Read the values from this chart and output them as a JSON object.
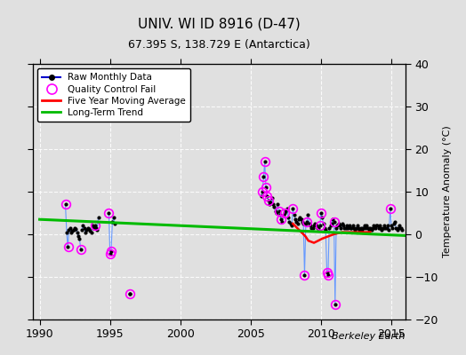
{
  "title": "UNIV. WI ID 8916 (D-47)",
  "subtitle": "67.395 S, 138.729 E (Antarctica)",
  "ylabel": "Temperature Anomaly (°C)",
  "credit": "Berkeley Earth",
  "xlim": [
    1989.5,
    2016.0
  ],
  "ylim": [
    -20,
    40
  ],
  "yticks": [
    -20,
    -10,
    0,
    10,
    20,
    30,
    40
  ],
  "xticks": [
    1990,
    1995,
    2000,
    2005,
    2010,
    2015
  ],
  "background_color": "#e0e0e0",
  "grid_color": "#ffffff",
  "segments": [
    {
      "x": [
        1991.83,
        1991.92,
        1992.0,
        1992.08,
        1992.17,
        1992.25,
        1992.33,
        1992.42,
        1992.5,
        1992.58,
        1992.67,
        1992.75,
        1992.83,
        1992.92
      ],
      "y": [
        7.0,
        0.5,
        -3.0,
        1.0,
        1.5,
        0.5,
        0.8,
        1.0,
        1.5,
        1.2,
        0.5,
        -0.5,
        -1.0,
        -3.5
      ]
    },
    {
      "x": [
        1993.0,
        1993.08,
        1993.17,
        1993.25,
        1993.33,
        1993.42,
        1993.5,
        1993.58,
        1993.67,
        1993.75,
        1993.83,
        1993.92
      ],
      "y": [
        1.0,
        2.0,
        1.5,
        0.5,
        1.0,
        1.5,
        1.2,
        0.8,
        0.5,
        2.0,
        1.5,
        2.0
      ]
    },
    {
      "x": [
        1994.0,
        1994.08,
        1994.17
      ],
      "y": [
        1.5,
        1.0,
        4.0
      ]
    },
    {
      "x": [
        1994.92,
        1995.0,
        1995.08,
        1995.17,
        1995.25,
        1995.33
      ],
      "y": [
        5.0,
        -4.5,
        -4.0,
        3.0,
        4.0,
        2.5
      ]
    },
    {
      "x": [
        1996.42
      ],
      "y": [
        -14.0
      ]
    },
    {
      "x": [
        2005.75,
        2005.83,
        2005.92,
        2006.0,
        2006.08,
        2006.17,
        2006.25,
        2006.33,
        2006.42,
        2006.5,
        2006.58,
        2006.67,
        2006.75,
        2006.83,
        2006.92,
        2007.0,
        2007.08,
        2007.17,
        2007.25,
        2007.33,
        2007.42,
        2007.5,
        2007.58,
        2007.67,
        2007.75,
        2007.83,
        2007.92,
        2008.0,
        2008.08,
        2008.17,
        2008.25,
        2008.33,
        2008.42,
        2008.5,
        2008.58,
        2008.67,
        2008.75,
        2008.83,
        2008.92,
        2009.0,
        2009.08,
        2009.17,
        2009.25,
        2009.33,
        2009.42,
        2009.5,
        2009.58,
        2009.67,
        2009.75,
        2009.83,
        2009.92,
        2010.0,
        2010.08,
        2010.17,
        2010.25,
        2010.33,
        2010.42,
        2010.5,
        2010.58,
        2010.67,
        2010.75,
        2010.83,
        2010.92,
        2011.0,
        2011.08,
        2011.17,
        2011.25,
        2011.33,
        2011.42,
        2011.5,
        2011.58,
        2011.67,
        2011.75,
        2011.83,
        2011.92,
        2012.0,
        2012.08,
        2012.17,
        2012.25,
        2012.33,
        2012.42,
        2012.5,
        2012.58,
        2012.67,
        2012.75,
        2012.83,
        2012.92,
        2013.0,
        2013.08,
        2013.17,
        2013.25,
        2013.33,
        2013.42,
        2013.5,
        2013.58,
        2013.67,
        2013.75,
        2013.83,
        2013.92,
        2014.0,
        2014.08,
        2014.17,
        2014.25,
        2014.33,
        2014.42,
        2014.5,
        2014.58,
        2014.67,
        2014.75,
        2014.83,
        2014.92,
        2015.0,
        2015.08,
        2015.17,
        2015.25,
        2015.33,
        2015.42,
        2015.5,
        2015.58,
        2015.67,
        2015.75
      ],
      "y": [
        9.0,
        10.0,
        13.5,
        17.0,
        11.0,
        9.0,
        8.0,
        7.0,
        7.5,
        8.5,
        7.0,
        6.5,
        5.5,
        5.0,
        7.0,
        5.5,
        4.5,
        3.5,
        3.0,
        4.5,
        5.0,
        5.5,
        6.0,
        4.0,
        3.0,
        2.5,
        2.0,
        6.0,
        4.5,
        3.5,
        3.0,
        2.5,
        3.5,
        4.0,
        3.5,
        3.0,
        2.5,
        -9.5,
        2.5,
        3.0,
        4.5,
        2.5,
        2.0,
        1.5,
        1.5,
        2.0,
        2.5,
        2.0,
        1.5,
        1.5,
        2.0,
        5.0,
        4.0,
        2.5,
        1.5,
        1.0,
        -9.0,
        -9.5,
        1.5,
        2.0,
        2.5,
        3.5,
        3.0,
        -16.5,
        1.5,
        2.0,
        2.5,
        2.0,
        1.5,
        2.5,
        2.0,
        1.5,
        1.5,
        2.0,
        1.5,
        2.0,
        1.5,
        1.5,
        2.0,
        1.5,
        1.0,
        1.5,
        2.0,
        1.5,
        1.0,
        1.5,
        1.0,
        1.5,
        2.0,
        1.5,
        2.0,
        1.5,
        1.0,
        1.5,
        1.0,
        1.5,
        2.0,
        1.5,
        2.0,
        2.0,
        1.5,
        2.0,
        1.5,
        1.0,
        1.5,
        2.0,
        1.5,
        1.5,
        2.0,
        1.0,
        6.0,
        2.0,
        1.5,
        2.5,
        3.0,
        1.5,
        1.0,
        1.5,
        2.0,
        1.5,
        1.0
      ]
    }
  ],
  "qc_fail": [
    [
      1991.83,
      7.0
    ],
    [
      1992.08,
      -3.0
    ],
    [
      1992.92,
      -3.5
    ],
    [
      1993.92,
      2.0
    ],
    [
      1994.92,
      5.0
    ],
    [
      1995.0,
      -4.5
    ],
    [
      1995.08,
      -4.0
    ],
    [
      1996.42,
      -14.0
    ],
    [
      2005.83,
      10.0
    ],
    [
      2005.92,
      13.5
    ],
    [
      2006.0,
      17.0
    ],
    [
      2006.08,
      11.0
    ],
    [
      2006.17,
      9.0
    ],
    [
      2006.25,
      8.0
    ],
    [
      2007.0,
      5.5
    ],
    [
      2007.17,
      3.5
    ],
    [
      2007.42,
      5.0
    ],
    [
      2008.0,
      6.0
    ],
    [
      2008.83,
      -9.5
    ],
    [
      2009.0,
      3.0
    ],
    [
      2009.92,
      2.0
    ],
    [
      2010.0,
      5.0
    ],
    [
      2010.42,
      -9.0
    ],
    [
      2010.5,
      -9.5
    ],
    [
      2010.92,
      3.0
    ],
    [
      2011.0,
      -16.5
    ],
    [
      2014.92,
      6.0
    ]
  ],
  "moving_avg": {
    "x": [
      2008.0,
      2008.3,
      2008.6,
      2008.9,
      2009.1,
      2009.5,
      2009.8,
      2010.1,
      2010.5,
      2010.9,
      2011.5,
      2012.5,
      2013.5
    ],
    "y": [
      2.5,
      1.5,
      0.5,
      -0.5,
      -1.5,
      -2.0,
      -1.5,
      -1.0,
      -0.5,
      0.0,
      0.5,
      0.5,
      0.5
    ]
  },
  "trend": {
    "x": [
      1990,
      2016
    ],
    "y": [
      3.5,
      -0.3
    ]
  },
  "colors": {
    "raw_line": "#6699ff",
    "raw_dot": "#000000",
    "qc_marker": "#ff00ff",
    "moving_avg": "#ff0000",
    "trend": "#00bb00",
    "background": "#e0e0e0",
    "grid": "#ffffff"
  },
  "legend_line_color": "#0000cc"
}
